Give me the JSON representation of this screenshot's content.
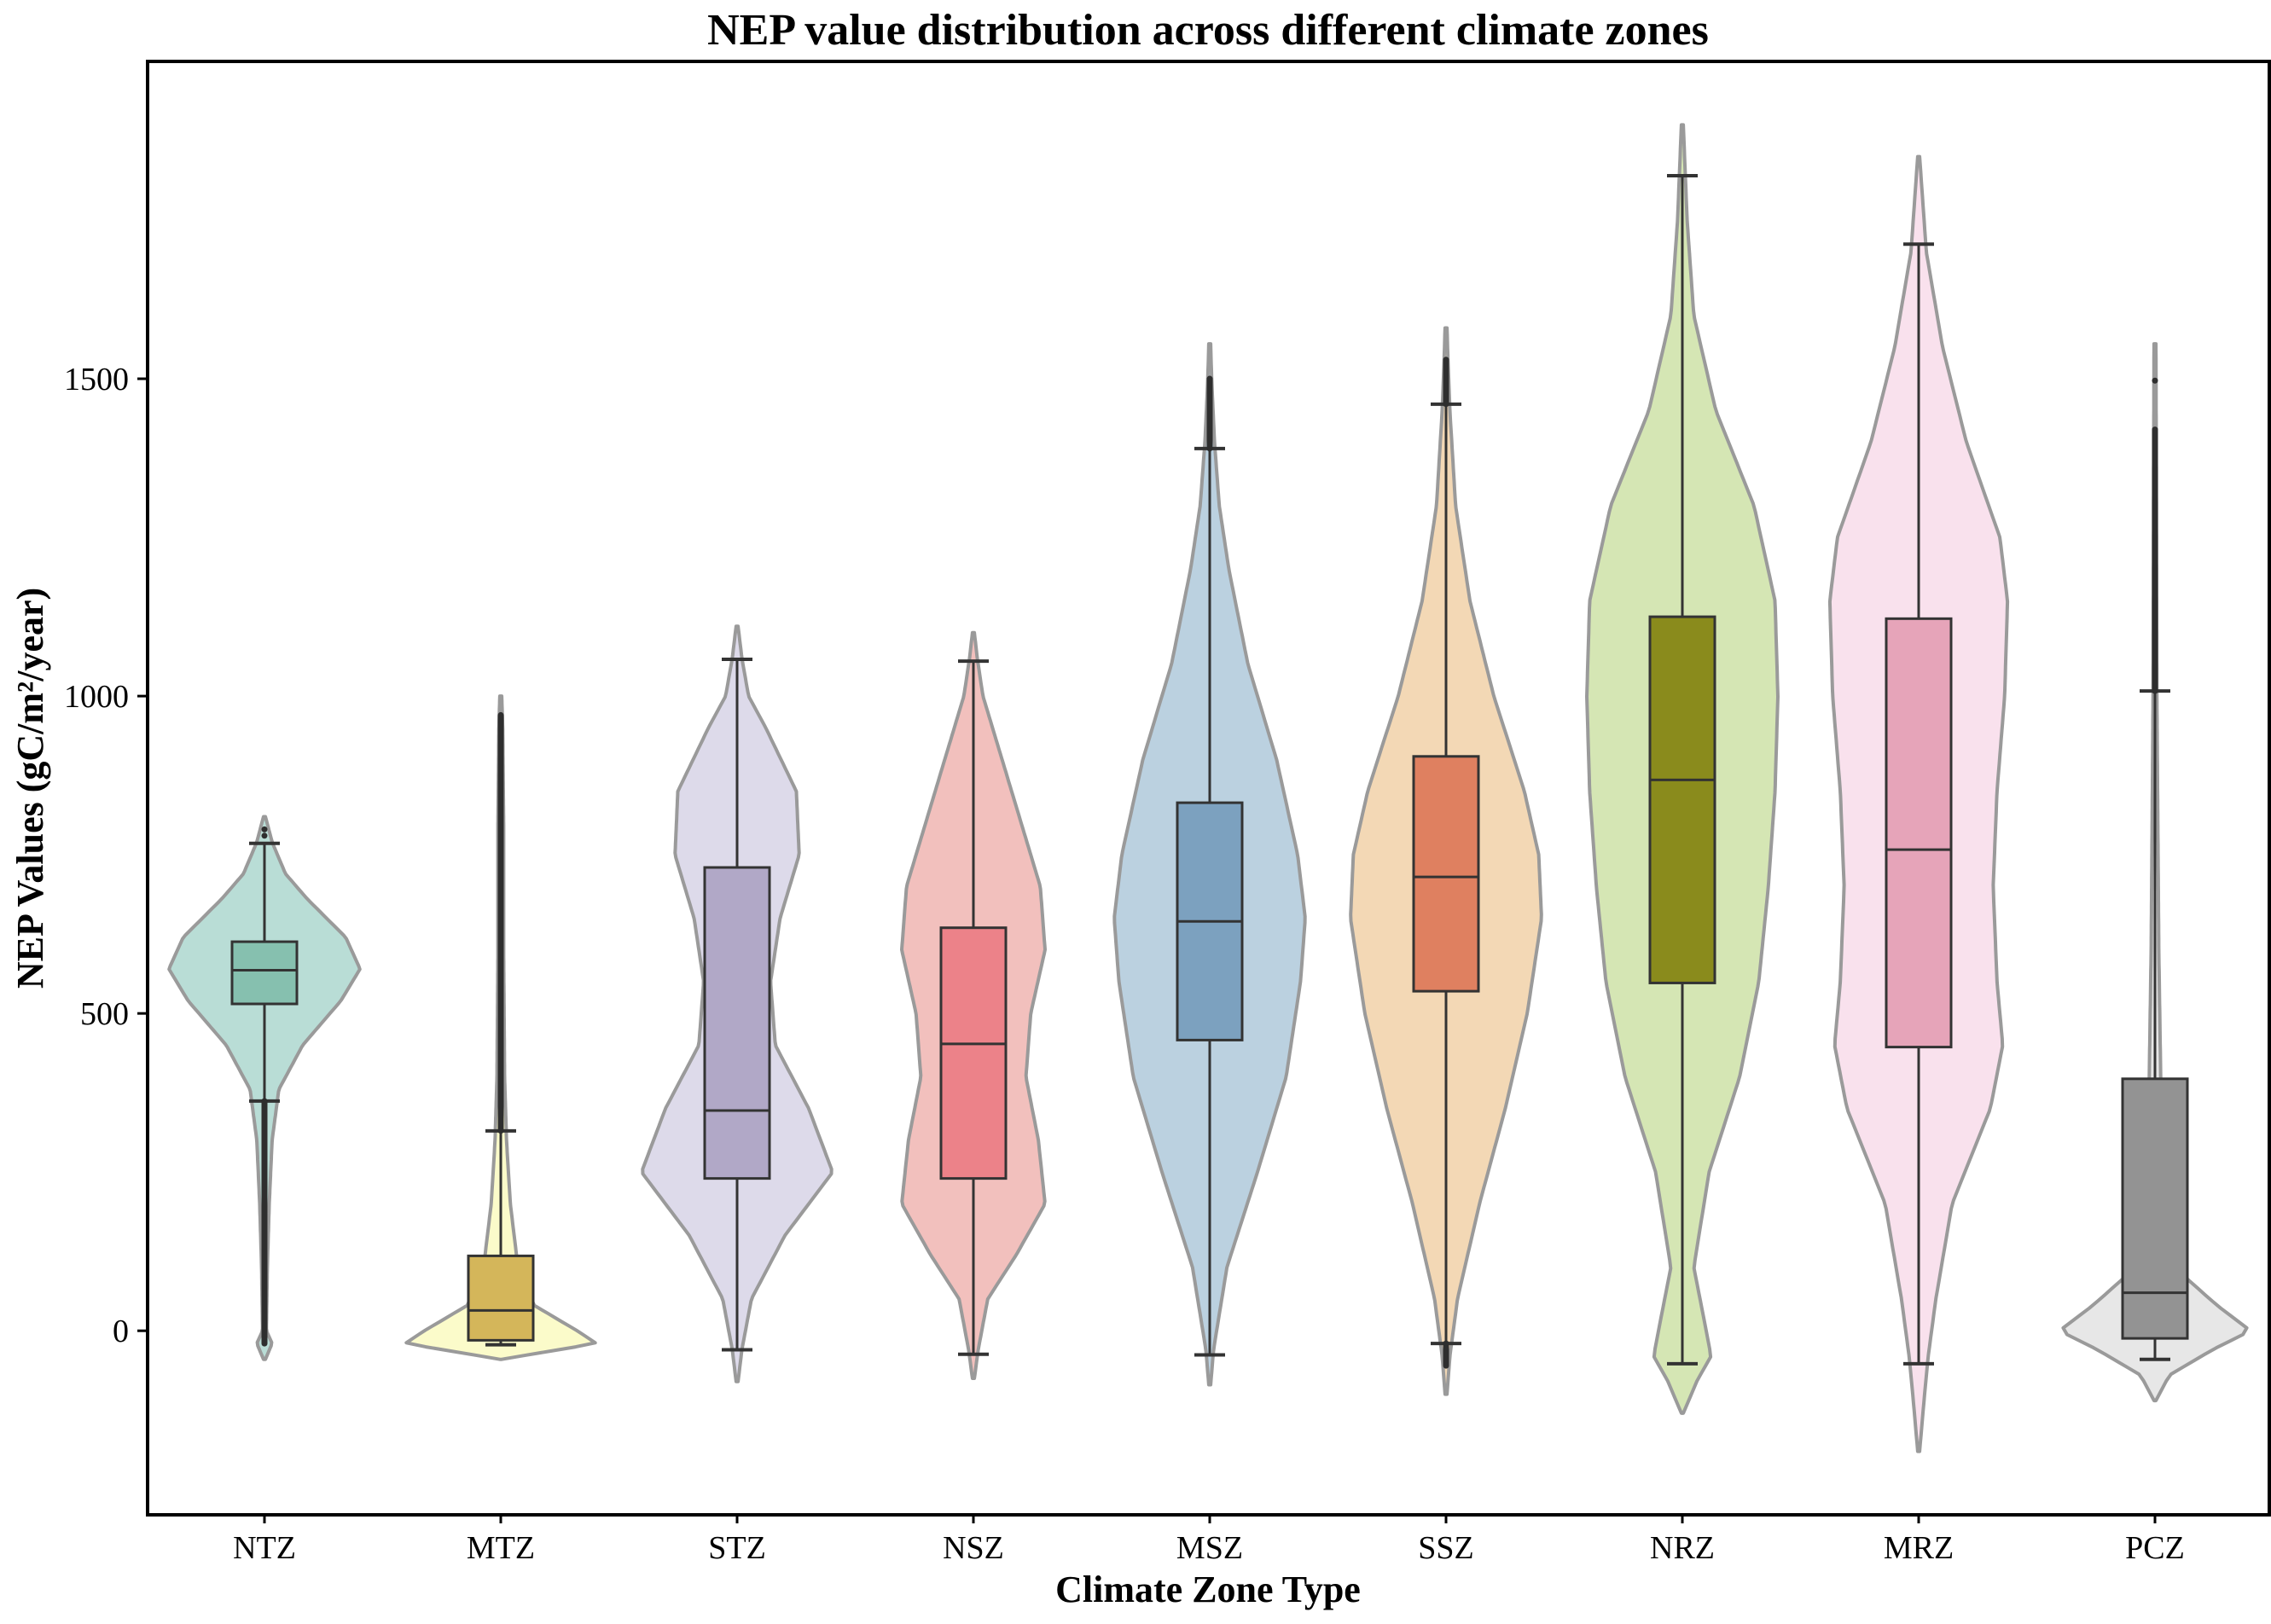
{
  "chart_data": {
    "type": "violin",
    "title": "NEP value distribution across different climate zones",
    "xlabel": "Climate Zone Type",
    "ylabel": "NEP Values (gC/m²/year)",
    "ylim": [
      -290,
      2000
    ],
    "yticks": [
      0,
      500,
      1000,
      1500
    ],
    "grid": false,
    "categories": [
      "NTZ",
      "MTZ",
      "STZ",
      "NSZ",
      "MSZ",
      "SSZ",
      "NRZ",
      "MRZ",
      "PCZ"
    ],
    "series": [
      {
        "name": "NTZ",
        "fill": "#b9ddd6",
        "box_color": "#86c0af",
        "q1": 515,
        "median": 568,
        "q3": 613,
        "whisker_low": 362,
        "whisker_high": 768,
        "min": -45,
        "max": 810,
        "density": [
          [
            -45,
            0.01
          ],
          [
            -20,
            0.08
          ],
          [
            0,
            0.02
          ],
          [
            100,
            0.03
          ],
          [
            200,
            0.05
          ],
          [
            300,
            0.08
          ],
          [
            380,
            0.15
          ],
          [
            450,
            0.4
          ],
          [
            520,
            0.8
          ],
          [
            570,
            1.0
          ],
          [
            620,
            0.85
          ],
          [
            680,
            0.45
          ],
          [
            720,
            0.22
          ],
          [
            770,
            0.08
          ],
          [
            810,
            0.01
          ]
        ],
        "outliers_low_range": [
          -20,
          362
        ],
        "outliers_high": [
          780,
          790
        ]
      },
      {
        "name": "MTZ",
        "fill": "#fbfbca",
        "box_color": "#d4b65a",
        "q1": -15,
        "median": 32,
        "q3": 118,
        "whisker_low": -22,
        "whisker_high": 315,
        "min": -45,
        "max": 1000,
        "density": [
          [
            -45,
            0.01
          ],
          [
            -35,
            0.4
          ],
          [
            -20,
            1.0
          ],
          [
            0,
            0.8
          ],
          [
            40,
            0.35
          ],
          [
            100,
            0.18
          ],
          [
            200,
            0.1
          ],
          [
            300,
            0.06
          ],
          [
            400,
            0.04
          ],
          [
            600,
            0.03
          ],
          [
            800,
            0.03
          ],
          [
            950,
            0.02
          ],
          [
            1000,
            0.01
          ]
        ],
        "outliers_low_range": [],
        "outliers_high_range": [
          315,
          970
        ]
      },
      {
        "name": "STZ",
        "fill": "#dddaea",
        "box_color": "#b1a8c7",
        "q1": 240,
        "median": 347,
        "q3": 730,
        "whisker_low": -30,
        "whisker_high": 1058,
        "min": -80,
        "max": 1110,
        "density": [
          [
            -80,
            0.01
          ],
          [
            -30,
            0.05
          ],
          [
            50,
            0.15
          ],
          [
            150,
            0.5
          ],
          [
            250,
            1.0
          ],
          [
            350,
            0.75
          ],
          [
            450,
            0.4
          ],
          [
            550,
            0.35
          ],
          [
            650,
            0.45
          ],
          [
            750,
            0.65
          ],
          [
            850,
            0.62
          ],
          [
            950,
            0.3
          ],
          [
            1000,
            0.12
          ],
          [
            1060,
            0.05
          ],
          [
            1110,
            0.01
          ]
        ],
        "outliers_low_range": [],
        "outliers_high": []
      },
      {
        "name": "NSZ",
        "fill": "#f2c0bd",
        "box_color": "#ec8289",
        "q1": 240,
        "median": 452,
        "q3": 635,
        "whisker_low": -37,
        "whisker_high": 1055,
        "min": -75,
        "max": 1100,
        "density": [
          [
            -75,
            0.01
          ],
          [
            -30,
            0.05
          ],
          [
            50,
            0.15
          ],
          [
            120,
            0.45
          ],
          [
            200,
            0.75
          ],
          [
            300,
            0.68
          ],
          [
            400,
            0.55
          ],
          [
            500,
            0.6
          ],
          [
            600,
            0.75
          ],
          [
            700,
            0.7
          ],
          [
            800,
            0.5
          ],
          [
            900,
            0.3
          ],
          [
            1000,
            0.1
          ],
          [
            1060,
            0.04
          ],
          [
            1100,
            0.01
          ]
        ],
        "outliers_low_range": [],
        "outliers_high": []
      },
      {
        "name": "MSZ",
        "fill": "#bbd1e0",
        "box_color": "#7ca1bf",
        "q1": 458,
        "median": 645,
        "q3": 832,
        "whisker_low": -38,
        "whisker_high": 1390,
        "min": -85,
        "max": 1555,
        "density": [
          [
            -85,
            0.01
          ],
          [
            -30,
            0.04
          ],
          [
            100,
            0.18
          ],
          [
            250,
            0.5
          ],
          [
            400,
            0.8
          ],
          [
            550,
            0.95
          ],
          [
            650,
            1.0
          ],
          [
            750,
            0.92
          ],
          [
            900,
            0.7
          ],
          [
            1050,
            0.4
          ],
          [
            1200,
            0.2
          ],
          [
            1300,
            0.1
          ],
          [
            1400,
            0.05
          ],
          [
            1500,
            0.02
          ],
          [
            1555,
            0.01
          ]
        ],
        "outliers_low_range": [],
        "outliers_high_range": [
          1390,
          1500
        ]
      },
      {
        "name": "SSZ",
        "fill": "#f3d8b5",
        "box_color": "#df8060",
        "q1": 535,
        "median": 715,
        "q3": 905,
        "whisker_low": -20,
        "whisker_high": 1460,
        "min": -100,
        "max": 1580,
        "density": [
          [
            -100,
            0.01
          ],
          [
            -40,
            0.04
          ],
          [
            50,
            0.12
          ],
          [
            200,
            0.35
          ],
          [
            350,
            0.62
          ],
          [
            500,
            0.85
          ],
          [
            650,
            1.0
          ],
          [
            750,
            0.97
          ],
          [
            850,
            0.82
          ],
          [
            1000,
            0.5
          ],
          [
            1150,
            0.25
          ],
          [
            1300,
            0.1
          ],
          [
            1450,
            0.04
          ],
          [
            1530,
            0.02
          ],
          [
            1580,
            0.01
          ]
        ],
        "outliers_low_range": [
          -55,
          -20
        ],
        "outliers_high_range": [
          1460,
          1530
        ]
      },
      {
        "name": "NRZ",
        "fill": "#d5e6b4",
        "box_color": "#8a8b1c",
        "q1": 548,
        "median": 868,
        "q3": 1125,
        "whisker_low": -52,
        "whisker_high": 1820,
        "min": -130,
        "max": 1900,
        "density": [
          [
            -130,
            0.01
          ],
          [
            -80,
            0.15
          ],
          [
            -40,
            0.3
          ],
          [
            0,
            0.25
          ],
          [
            100,
            0.12
          ],
          [
            250,
            0.28
          ],
          [
            400,
            0.6
          ],
          [
            550,
            0.8
          ],
          [
            700,
            0.9
          ],
          [
            850,
            0.97
          ],
          [
            1000,
            1.0
          ],
          [
            1150,
            0.97
          ],
          [
            1300,
            0.75
          ],
          [
            1450,
            0.35
          ],
          [
            1600,
            0.12
          ],
          [
            1750,
            0.05
          ],
          [
            1900,
            0.01
          ]
        ],
        "outliers_low_range": [],
        "outliers_high": []
      },
      {
        "name": "MRZ",
        "fill": "#f9e1ed",
        "box_color": "#e6a4b9",
        "q1": 447,
        "median": 758,
        "q3": 1122,
        "whisker_low": -52,
        "whisker_high": 1712,
        "min": -190,
        "max": 1850,
        "density": [
          [
            -190,
            0.01
          ],
          [
            -120,
            0.05
          ],
          [
            -40,
            0.1
          ],
          [
            50,
            0.18
          ],
          [
            200,
            0.35
          ],
          [
            350,
            0.75
          ],
          [
            450,
            0.88
          ],
          [
            550,
            0.82
          ],
          [
            700,
            0.78
          ],
          [
            850,
            0.82
          ],
          [
            1000,
            0.9
          ],
          [
            1150,
            0.93
          ],
          [
            1250,
            0.85
          ],
          [
            1400,
            0.5
          ],
          [
            1550,
            0.25
          ],
          [
            1700,
            0.08
          ],
          [
            1850,
            0.01
          ]
        ],
        "outliers_low_range": [],
        "outliers_high": []
      },
      {
        "name": "PCZ",
        "fill": "#e7e7e7",
        "box_color": "#939393",
        "q1": -12,
        "median": 60,
        "q3": 397,
        "whisker_low": -45,
        "whisker_high": 1008,
        "min": -110,
        "max": 1555,
        "density": [
          [
            -110,
            0.01
          ],
          [
            -70,
            0.15
          ],
          [
            -30,
            0.6
          ],
          [
            0,
            1.0
          ],
          [
            40,
            0.65
          ],
          [
            100,
            0.2
          ],
          [
            200,
            0.1
          ],
          [
            400,
            0.06
          ],
          [
            600,
            0.04
          ],
          [
            800,
            0.03
          ],
          [
            1000,
            0.02
          ],
          [
            1300,
            0.015
          ],
          [
            1555,
            0.01
          ]
        ],
        "outliers_low_range": [],
        "outliers_high_range": [
          1008,
          1420
        ],
        "outliers_high": [
          1497
        ]
      }
    ]
  }
}
